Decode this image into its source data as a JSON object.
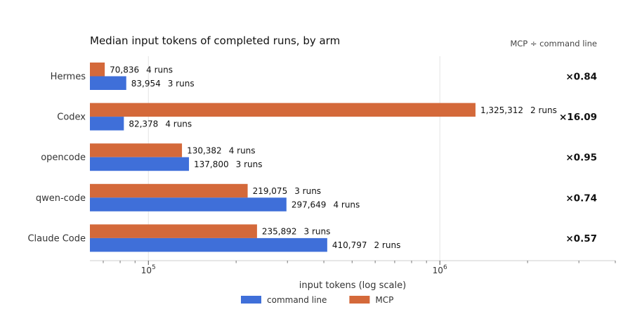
{
  "chart_data": {
    "type": "bar",
    "orientation": "horizontal",
    "title": "Median input tokens of completed runs, by arm",
    "subtitle": "MCP ÷ command line",
    "xlabel": "input tokens (log scale)",
    "x_scale": "log",
    "xlim": [
      63000,
      4000000
    ],
    "grid": true,
    "legend_position": "bottom",
    "categories": [
      "Hermes",
      "Codex",
      "opencode",
      "qwen-code",
      "Claude Code"
    ],
    "series": [
      {
        "name": "MCP",
        "color": "#d4693a",
        "values": [
          70836,
          1325312,
          130382,
          219075,
          235892
        ],
        "labels": [
          "70,836",
          "1,325,312",
          "130,382",
          "219,075",
          "235,892"
        ],
        "runs": [
          "4 runs",
          "2 runs",
          "4 runs",
          "3 runs",
          "3 runs"
        ]
      },
      {
        "name": "command line",
        "color": "#3f6fd9",
        "values": [
          83954,
          82378,
          137800,
          297649,
          410797
        ],
        "labels": [
          "83,954",
          "82,378",
          "137,800",
          "297,649",
          "410,797"
        ],
        "runs": [
          "3 runs",
          "4 runs",
          "3 runs",
          "4 runs",
          "2 runs"
        ]
      }
    ],
    "ratios": [
      "×0.84",
      "×16.09",
      "×0.95",
      "×0.74",
      "×0.57"
    ],
    "x_ticks": [
      {
        "value": 100000,
        "base": "10",
        "exp": "5"
      },
      {
        "value": 1000000,
        "base": "10",
        "exp": "6"
      }
    ],
    "legend_order": [
      "command line",
      "MCP"
    ]
  }
}
